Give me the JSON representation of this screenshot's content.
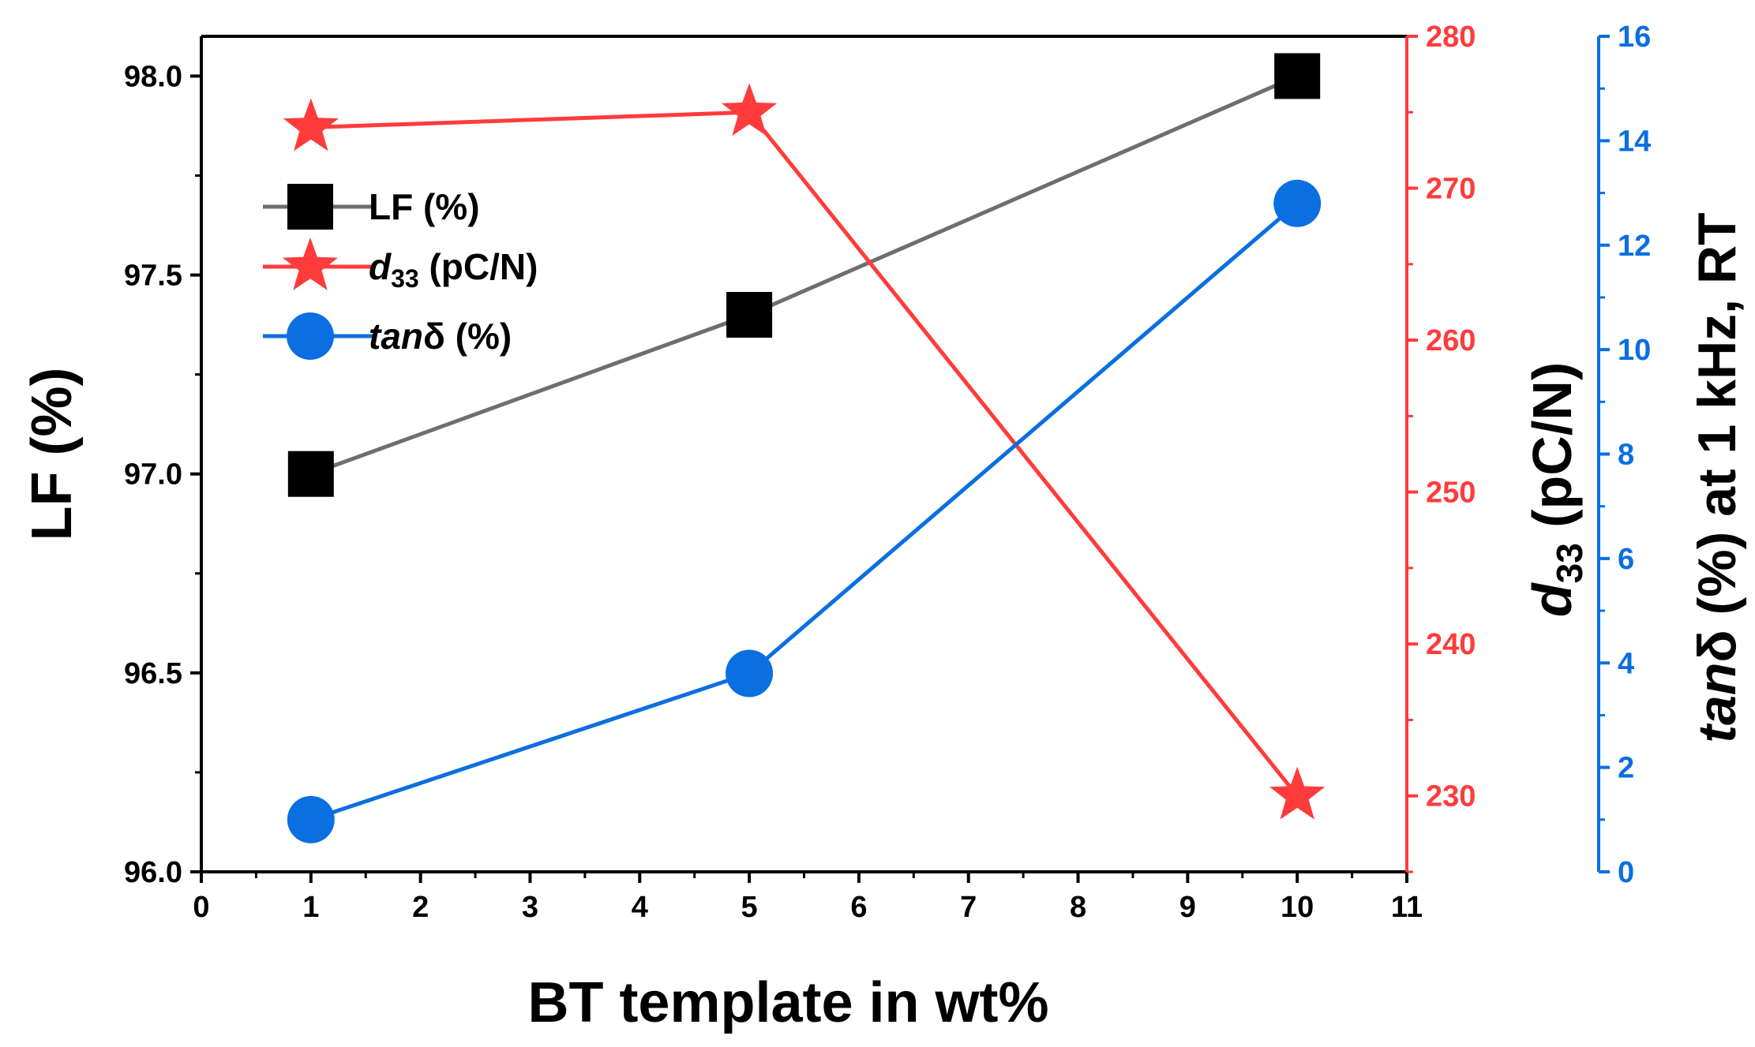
{
  "chart_data": {
    "type": "line",
    "x": [
      1,
      5,
      10
    ],
    "xlabel": "BT template in wt%",
    "xlim": [
      0,
      11
    ],
    "x_ticks": [
      "0",
      "1",
      "2",
      "3",
      "4",
      "5",
      "6",
      "7",
      "8",
      "9",
      "10",
      "11"
    ],
    "series": [
      {
        "name": "LF (%)",
        "axis": "left",
        "values": [
          97.0,
          97.4,
          98.0
        ],
        "color": "#000000",
        "line_color": "#6e6e6e",
        "marker": "square"
      },
      {
        "name_italic": "d",
        "name_sub": "33",
        "name_rest": " (pC/N)",
        "axis": "right1",
        "values": [
          274,
          275,
          230
        ],
        "color": "#ff3b3b",
        "line_color": "#ff3b3b",
        "marker": "star"
      },
      {
        "name_italic": "tan",
        "name_rest": "δ (%)",
        "axis": "right2",
        "values": [
          1.0,
          3.8,
          12.8
        ],
        "color": "#0a6fe0",
        "line_color": "#0a6fe0",
        "marker": "circle"
      }
    ],
    "left_axis": {
      "label": "LF (%)",
      "ylim": [
        96.0,
        98.1
      ],
      "ticks": [
        "96.0",
        "96.5",
        "97.0",
        "97.5",
        "98.0"
      ],
      "color": "#000000"
    },
    "right_axis_1": {
      "label_italic": "d",
      "label_sub": "33",
      "label_rest": " (pC/N)",
      "ylim": [
        225,
        280
      ],
      "ticks": [
        "230",
        "240",
        "250",
        "260",
        "270",
        "280"
      ],
      "color": "#ff3b3b"
    },
    "right_axis_2": {
      "label_italic": "tan",
      "label_rest": "δ (%) at 1 kHz, RT",
      "ylim": [
        0,
        16
      ],
      "ticks": [
        "0",
        "2",
        "4",
        "6",
        "8",
        "10",
        "12",
        "14",
        "16"
      ],
      "color": "#0a6fe0"
    },
    "legend_position": "upper-left"
  }
}
